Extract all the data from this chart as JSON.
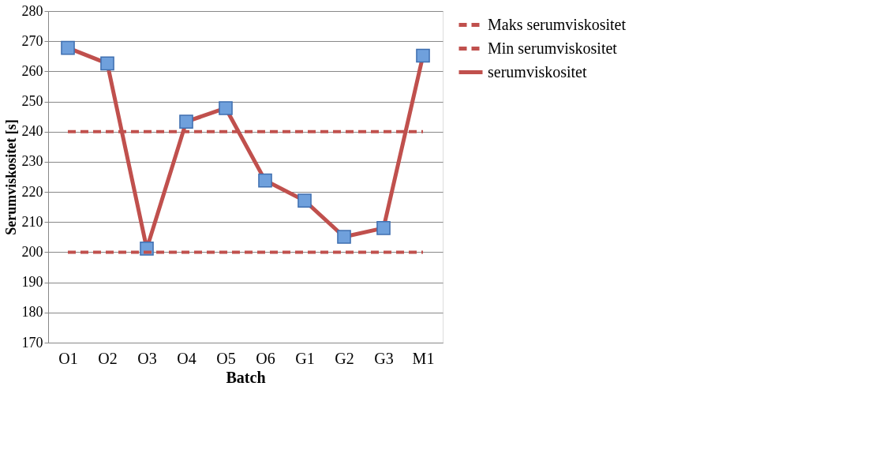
{
  "chart_data": {
    "type": "line",
    "xlabel": "Batch",
    "ylabel": "Serumviskositet [s]",
    "categories": [
      "O1",
      "O2",
      "O3",
      "O4",
      "O5",
      "O6",
      "G1",
      "G2",
      "G3",
      "M1"
    ],
    "series": [
      {
        "name": "Maks serumviskositet",
        "color": "#c0504d",
        "line_style": "dashed",
        "marker": "none",
        "values": [
          240,
          240,
          240,
          240,
          240,
          240,
          240,
          240,
          240,
          240
        ]
      },
      {
        "name": "Min serumviskositet",
        "color": "#c0504d",
        "line_style": "dashed",
        "marker": "none",
        "values": [
          200,
          200,
          200,
          200,
          200,
          200,
          200,
          200,
          200,
          200
        ]
      },
      {
        "name": "serumviskositet",
        "color": "#c0504d",
        "line_style": "solid",
        "marker": "square",
        "values": [
          267.8,
          262.6,
          201.2,
          243.3,
          247.8,
          223.8,
          217.1,
          205.1,
          208,
          265.2
        ]
      }
    ],
    "ylim": [
      170,
      280
    ],
    "yticks": [
      170,
      180,
      190,
      200,
      210,
      220,
      230,
      240,
      250,
      260,
      270,
      280
    ],
    "grid": "y",
    "legend": "right"
  }
}
